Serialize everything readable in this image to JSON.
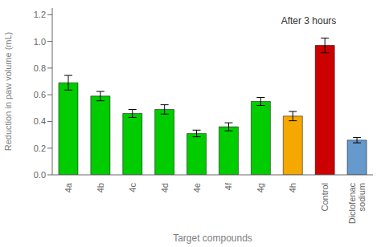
{
  "chart_data": {
    "type": "bar",
    "categories": [
      "4a",
      "4b",
      "4c",
      "4d",
      "4e",
      "4f",
      "4g",
      "4h",
      "Control",
      "Diclofenac\nsodium"
    ],
    "values": [
      0.69,
      0.59,
      0.46,
      0.49,
      0.31,
      0.36,
      0.55,
      0.44,
      0.97,
      0.26
    ],
    "errors": [
      0.055,
      0.035,
      0.03,
      0.035,
      0.025,
      0.03,
      0.03,
      0.035,
      0.055,
      0.02
    ],
    "colors": [
      "#00cc00",
      "#00cc00",
      "#00cc00",
      "#00cc00",
      "#00cc00",
      "#00cc00",
      "#00cc00",
      "#f5a800",
      "#cc0000",
      "#6699cc"
    ],
    "ylabel": "Reduction in paw volume (mL)",
    "xlabel": "Target compounds",
    "annotation": "After 3 hours",
    "ylim": [
      0,
      1.25
    ],
    "yticks": [
      {
        "value": 0,
        "label": "0.0"
      },
      0.2,
      0.4,
      0.6,
      0.8,
      {
        "value": 1.0,
        "label": "1.0"
      },
      1.2
    ]
  }
}
